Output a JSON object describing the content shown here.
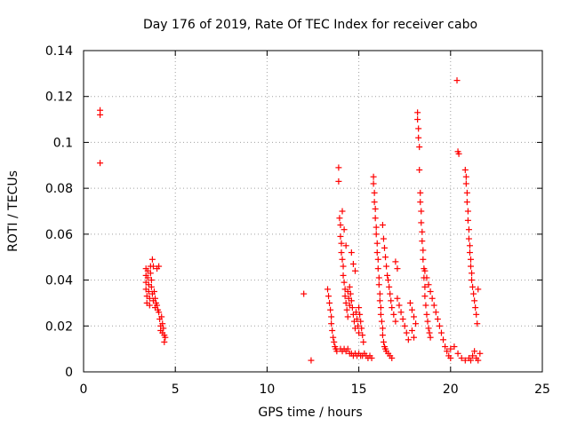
{
  "chart_data": {
    "type": "scatter",
    "title": "Day 176 of 2019, Rate Of TEC Index for receiver cabo",
    "xlabel": "GPS time / hours",
    "ylabel": "ROTI / TECUs",
    "xlim": [
      0,
      25
    ],
    "ylim": [
      0,
      0.14
    ],
    "xticks": [
      0,
      5,
      10,
      15,
      20,
      25
    ],
    "xtick_labels": [
      "0",
      "5",
      "10",
      "15",
      "20",
      "25"
    ],
    "yticks": [
      0,
      0.02,
      0.04,
      0.06,
      0.08,
      0.1,
      0.12,
      0.14
    ],
    "ytick_labels": [
      "0",
      "0.02",
      "0.04",
      "0.06",
      "0.08",
      "0.1",
      "0.12",
      "0.14"
    ],
    "grid": true,
    "marker": "+",
    "color": "#ff0000",
    "series": [
      {
        "name": "ROTI",
        "points": [
          [
            0.9,
            0.114
          ],
          [
            0.9,
            0.112
          ],
          [
            0.9,
            0.091
          ],
          [
            3.4,
            0.045
          ],
          [
            3.4,
            0.042
          ],
          [
            3.4,
            0.039
          ],
          [
            3.4,
            0.036
          ],
          [
            3.45,
            0.033
          ],
          [
            3.45,
            0.03
          ],
          [
            3.5,
            0.044
          ],
          [
            3.5,
            0.041
          ],
          [
            3.55,
            0.038
          ],
          [
            3.55,
            0.035
          ],
          [
            3.6,
            0.032
          ],
          [
            3.6,
            0.029
          ],
          [
            3.65,
            0.046
          ],
          [
            3.65,
            0.043
          ],
          [
            3.7,
            0.04
          ],
          [
            3.7,
            0.037
          ],
          [
            3.75,
            0.049
          ],
          [
            3.75,
            0.034
          ],
          [
            3.8,
            0.046
          ],
          [
            3.8,
            0.031
          ],
          [
            3.85,
            0.035
          ],
          [
            3.9,
            0.032
          ],
          [
            3.9,
            0.028
          ],
          [
            3.95,
            0.03
          ],
          [
            4.0,
            0.045
          ],
          [
            4.0,
            0.029
          ],
          [
            4.05,
            0.027
          ],
          [
            4.1,
            0.046
          ],
          [
            4.1,
            0.026
          ],
          [
            4.15,
            0.023
          ],
          [
            4.2,
            0.02
          ],
          [
            4.2,
            0.018
          ],
          [
            4.25,
            0.024
          ],
          [
            4.3,
            0.021
          ],
          [
            4.3,
            0.017
          ],
          [
            4.35,
            0.019
          ],
          [
            4.4,
            0.016
          ],
          [
            4.4,
            0.013
          ],
          [
            4.45,
            0.015
          ],
          [
            12.0,
            0.034
          ],
          [
            12.4,
            0.005
          ],
          [
            13.3,
            0.036
          ],
          [
            13.35,
            0.033
          ],
          [
            13.4,
            0.03
          ],
          [
            13.45,
            0.027
          ],
          [
            13.5,
            0.024
          ],
          [
            13.5,
            0.021
          ],
          [
            13.55,
            0.018
          ],
          [
            13.6,
            0.015
          ],
          [
            13.65,
            0.013
          ],
          [
            13.7,
            0.011
          ],
          [
            13.75,
            0.01
          ],
          [
            13.8,
            0.009
          ],
          [
            13.9,
            0.089
          ],
          [
            13.9,
            0.083
          ],
          [
            13.95,
            0.067
          ],
          [
            14.0,
            0.064
          ],
          [
            14.0,
            0.059
          ],
          [
            14.05,
            0.056
          ],
          [
            14.05,
            0.052
          ],
          [
            14.1,
            0.07
          ],
          [
            14.1,
            0.049
          ],
          [
            14.15,
            0.046
          ],
          [
            14.15,
            0.042
          ],
          [
            14.2,
            0.062
          ],
          [
            14.2,
            0.039
          ],
          [
            14.25,
            0.036
          ],
          [
            14.25,
            0.033
          ],
          [
            14.3,
            0.055
          ],
          [
            14.3,
            0.03
          ],
          [
            14.35,
            0.027
          ],
          [
            14.4,
            0.024
          ],
          [
            14.4,
            0.035
          ],
          [
            14.45,
            0.032
          ],
          [
            14.5,
            0.029
          ],
          [
            14.5,
            0.037
          ],
          [
            14.55,
            0.034
          ],
          [
            14.6,
            0.052
          ],
          [
            14.6,
            0.031
          ],
          [
            14.65,
            0.028
          ],
          [
            14.7,
            0.025
          ],
          [
            14.7,
            0.047
          ],
          [
            14.75,
            0.022
          ],
          [
            14.8,
            0.044
          ],
          [
            14.8,
            0.019
          ],
          [
            14.85,
            0.026
          ],
          [
            14.9,
            0.023
          ],
          [
            14.95,
            0.02
          ],
          [
            15.0,
            0.017
          ],
          [
            15.0,
            0.028
          ],
          [
            15.05,
            0.025
          ],
          [
            15.1,
            0.022
          ],
          [
            15.15,
            0.019
          ],
          [
            15.2,
            0.016
          ],
          [
            15.25,
            0.013
          ],
          [
            14.0,
            0.01
          ],
          [
            14.1,
            0.009
          ],
          [
            14.2,
            0.01
          ],
          [
            14.3,
            0.009
          ],
          [
            14.4,
            0.01
          ],
          [
            14.5,
            0.008
          ],
          [
            14.6,
            0.008
          ],
          [
            14.7,
            0.007
          ],
          [
            14.8,
            0.008
          ],
          [
            14.9,
            0.007
          ],
          [
            15.0,
            0.008
          ],
          [
            15.1,
            0.007
          ],
          [
            15.2,
            0.007
          ],
          [
            15.3,
            0.008
          ],
          [
            15.4,
            0.007
          ],
          [
            15.5,
            0.006
          ],
          [
            15.6,
            0.007
          ],
          [
            15.7,
            0.006
          ],
          [
            15.8,
            0.085
          ],
          [
            15.8,
            0.082
          ],
          [
            15.85,
            0.078
          ],
          [
            15.85,
            0.074
          ],
          [
            15.9,
            0.071
          ],
          [
            15.9,
            0.067
          ],
          [
            15.95,
            0.063
          ],
          [
            15.95,
            0.06
          ],
          [
            16.0,
            0.056
          ],
          [
            16.0,
            0.052
          ],
          [
            16.05,
            0.049
          ],
          [
            16.05,
            0.045
          ],
          [
            16.1,
            0.041
          ],
          [
            16.1,
            0.038
          ],
          [
            16.15,
            0.034
          ],
          [
            16.15,
            0.031
          ],
          [
            16.2,
            0.028
          ],
          [
            16.2,
            0.025
          ],
          [
            16.25,
            0.022
          ],
          [
            16.3,
            0.019
          ],
          [
            16.3,
            0.016
          ],
          [
            16.35,
            0.013
          ],
          [
            16.4,
            0.011
          ],
          [
            16.45,
            0.01
          ],
          [
            16.5,
            0.009
          ],
          [
            16.6,
            0.008
          ],
          [
            16.7,
            0.007
          ],
          [
            16.8,
            0.006
          ],
          [
            16.3,
            0.064
          ],
          [
            16.35,
            0.058
          ],
          [
            16.4,
            0.054
          ],
          [
            16.45,
            0.05
          ],
          [
            16.5,
            0.046
          ],
          [
            16.55,
            0.042
          ],
          [
            16.6,
            0.04
          ],
          [
            16.65,
            0.037
          ],
          [
            16.7,
            0.034
          ],
          [
            16.75,
            0.031
          ],
          [
            16.8,
            0.028
          ],
          [
            16.9,
            0.025
          ],
          [
            17.0,
            0.048
          ],
          [
            17.0,
            0.022
          ],
          [
            17.1,
            0.045
          ],
          [
            17.1,
            0.032
          ],
          [
            17.2,
            0.029
          ],
          [
            17.3,
            0.026
          ],
          [
            17.4,
            0.023
          ],
          [
            17.5,
            0.02
          ],
          [
            17.6,
            0.017
          ],
          [
            17.7,
            0.014
          ],
          [
            18.2,
            0.113
          ],
          [
            18.2,
            0.11
          ],
          [
            18.25,
            0.106
          ],
          [
            18.25,
            0.102
          ],
          [
            18.3,
            0.098
          ],
          [
            18.3,
            0.088
          ],
          [
            18.35,
            0.078
          ],
          [
            18.35,
            0.074
          ],
          [
            18.4,
            0.07
          ],
          [
            18.4,
            0.065
          ],
          [
            18.45,
            0.061
          ],
          [
            18.45,
            0.057
          ],
          [
            18.5,
            0.053
          ],
          [
            18.5,
            0.049
          ],
          [
            18.55,
            0.045
          ],
          [
            18.55,
            0.041
          ],
          [
            18.6,
            0.037
          ],
          [
            18.6,
            0.033
          ],
          [
            18.65,
            0.029
          ],
          [
            18.7,
            0.025
          ],
          [
            18.75,
            0.022
          ],
          [
            18.8,
            0.019
          ],
          [
            18.85,
            0.017
          ],
          [
            18.9,
            0.015
          ],
          [
            17.8,
            0.03
          ],
          [
            17.9,
            0.027
          ],
          [
            18.0,
            0.024
          ],
          [
            18.1,
            0.021
          ],
          [
            17.9,
            0.018
          ],
          [
            18.0,
            0.015
          ],
          [
            18.6,
            0.044
          ],
          [
            18.7,
            0.041
          ],
          [
            18.8,
            0.038
          ],
          [
            18.9,
            0.035
          ],
          [
            19.0,
            0.032
          ],
          [
            19.1,
            0.029
          ],
          [
            19.2,
            0.026
          ],
          [
            19.3,
            0.023
          ],
          [
            19.4,
            0.02
          ],
          [
            19.5,
            0.017
          ],
          [
            19.6,
            0.014
          ],
          [
            19.7,
            0.011
          ],
          [
            19.8,
            0.009
          ],
          [
            19.9,
            0.007
          ],
          [
            20.0,
            0.006
          ],
          [
            20.35,
            0.127
          ],
          [
            20.4,
            0.096
          ],
          [
            20.45,
            0.095
          ],
          [
            20.8,
            0.088
          ],
          [
            20.85,
            0.085
          ],
          [
            20.85,
            0.082
          ],
          [
            20.9,
            0.078
          ],
          [
            20.9,
            0.074
          ],
          [
            20.95,
            0.07
          ],
          [
            20.95,
            0.066
          ],
          [
            21.0,
            0.062
          ],
          [
            21.0,
            0.058
          ],
          [
            21.05,
            0.055
          ],
          [
            21.05,
            0.052
          ],
          [
            21.1,
            0.049
          ],
          [
            21.1,
            0.046
          ],
          [
            21.15,
            0.043
          ],
          [
            21.15,
            0.04
          ],
          [
            21.2,
            0.037
          ],
          [
            21.25,
            0.034
          ],
          [
            21.3,
            0.031
          ],
          [
            21.35,
            0.028
          ],
          [
            21.4,
            0.025
          ],
          [
            21.45,
            0.021
          ],
          [
            21.5,
            0.036
          ],
          [
            20.0,
            0.01
          ],
          [
            20.2,
            0.011
          ],
          [
            20.4,
            0.008
          ],
          [
            20.6,
            0.006
          ],
          [
            20.8,
            0.005
          ],
          [
            21.0,
            0.006
          ],
          [
            21.2,
            0.007
          ],
          [
            21.4,
            0.006
          ],
          [
            21.5,
            0.005
          ],
          [
            21.6,
            0.008
          ],
          [
            21.3,
            0.009
          ],
          [
            21.1,
            0.005
          ]
        ]
      }
    ]
  }
}
